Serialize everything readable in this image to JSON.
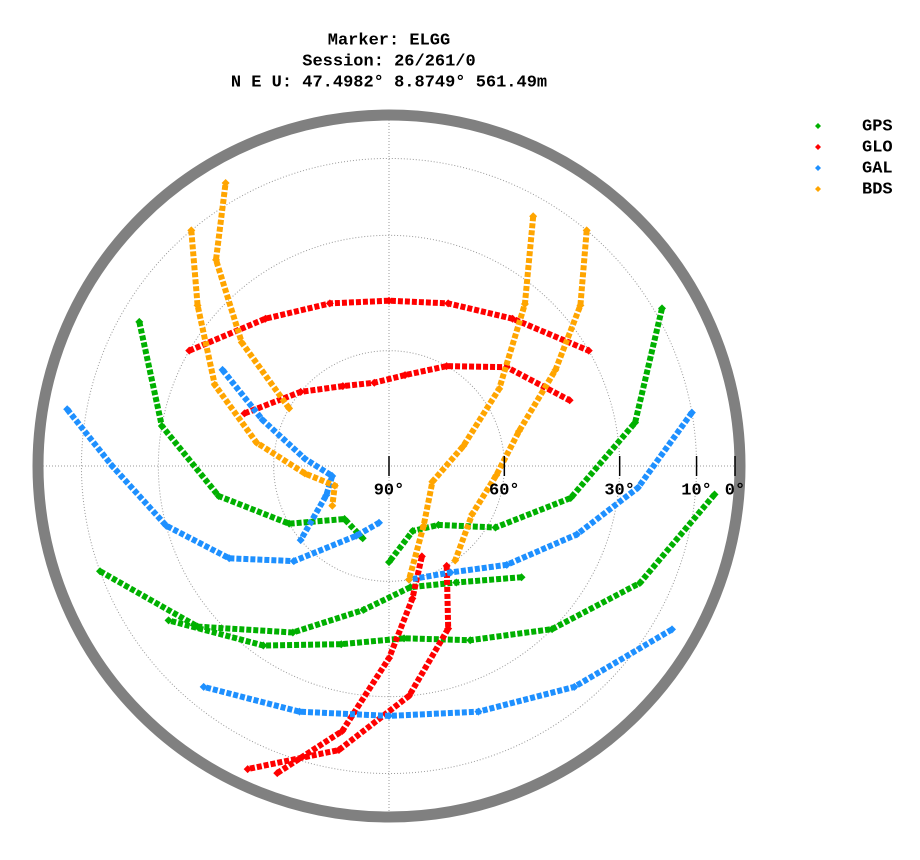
{
  "chart_data": {
    "type": "polar-scatter",
    "title": [
      "Marker: ELGG",
      "Session: 26/261/0",
      "N E U: 47.4982° 8.8749° 561.49m"
    ],
    "elevation_ticks": [
      {
        "value": 90,
        "label": "90°"
      },
      {
        "value": 60,
        "label": "60°"
      },
      {
        "value": 30,
        "label": "30°"
      },
      {
        "value": 10,
        "label": "10°"
      },
      {
        "value": 0,
        "label": "0°"
      }
    ],
    "elevation_lim": [
      0,
      90
    ],
    "grid": true,
    "legend": "upper right",
    "series": [
      {
        "name": "GPS",
        "color": "#00b000",
        "azimuth": [
          95,
          115,
          135,
          155,
          175,
          195,
          215,
          235,
          null,
          250,
          230,
          210,
          190,
          170,
          150,
          130,
          null,
          300,
          280,
          260,
          240,
          220,
          200,
          null,
          60,
          80,
          100,
          120,
          140,
          160,
          180
        ],
        "elevation": [
          5,
          18,
          30,
          40,
          45,
          42,
          33,
          20,
          null,
          10,
          25,
          40,
          52,
          58,
          55,
          45,
          null,
          15,
          30,
          45,
          60,
          72,
          70,
          null,
          8,
          25,
          42,
          58,
          70,
          72,
          65
        ]
      },
      {
        "name": "GLO",
        "color": "#ff0000",
        "azimuth": [
          300,
          320,
          340,
          0,
          20,
          40,
          60,
          null,
          290,
          310,
          330,
          350,
          10,
          30,
          50,
          70,
          null,
          200,
          190,
          180,
          170,
          160,
          null,
          150,
          160,
          175,
          190,
          205
        ],
        "elevation": [
          30,
          40,
          45,
          47,
          45,
          40,
          30,
          null,
          50,
          60,
          66,
          68,
          66,
          60,
          50,
          40,
          null,
          5,
          20,
          40,
          55,
          65,
          null,
          60,
          45,
          30,
          15,
          3
        ]
      },
      {
        "name": "GAL",
        "color": "#1e90ff",
        "azimuth": [
          280,
          270,
          255,
          240,
          225,
          205,
          190,
          null,
          300,
          290,
          275,
          260,
          245,
          230,
          null,
          80,
          95,
          110,
          130,
          150,
          170,
          null,
          120,
          140,
          160,
          180,
          200,
          220
        ],
        "elevation": [
          5,
          18,
          30,
          42,
          55,
          70,
          75,
          null,
          40,
          55,
          68,
          75,
          72,
          60,
          null,
          10,
          25,
          38,
          50,
          58,
          60,
          null,
          5,
          15,
          22,
          25,
          22,
          15
        ]
      },
      {
        "name": "BDS",
        "color": "#ffa500",
        "azimuth": [
          320,
          310,
          295,
          280,
          265,
          250,
          235,
          null,
          40,
          50,
          60,
          75,
          95,
          120,
          145,
          null,
          30,
          40,
          55,
          75,
          110,
          150,
          170,
          null,
          300,
          310,
          320,
          330
        ],
        "elevation": [
          10,
          25,
          40,
          55,
          68,
          75,
          72,
          null,
          10,
          25,
          40,
          55,
          62,
          65,
          60,
          null,
          15,
          35,
          55,
          70,
          78,
          72,
          60,
          null,
          60,
          40,
          20,
          5
        ]
      }
    ]
  }
}
